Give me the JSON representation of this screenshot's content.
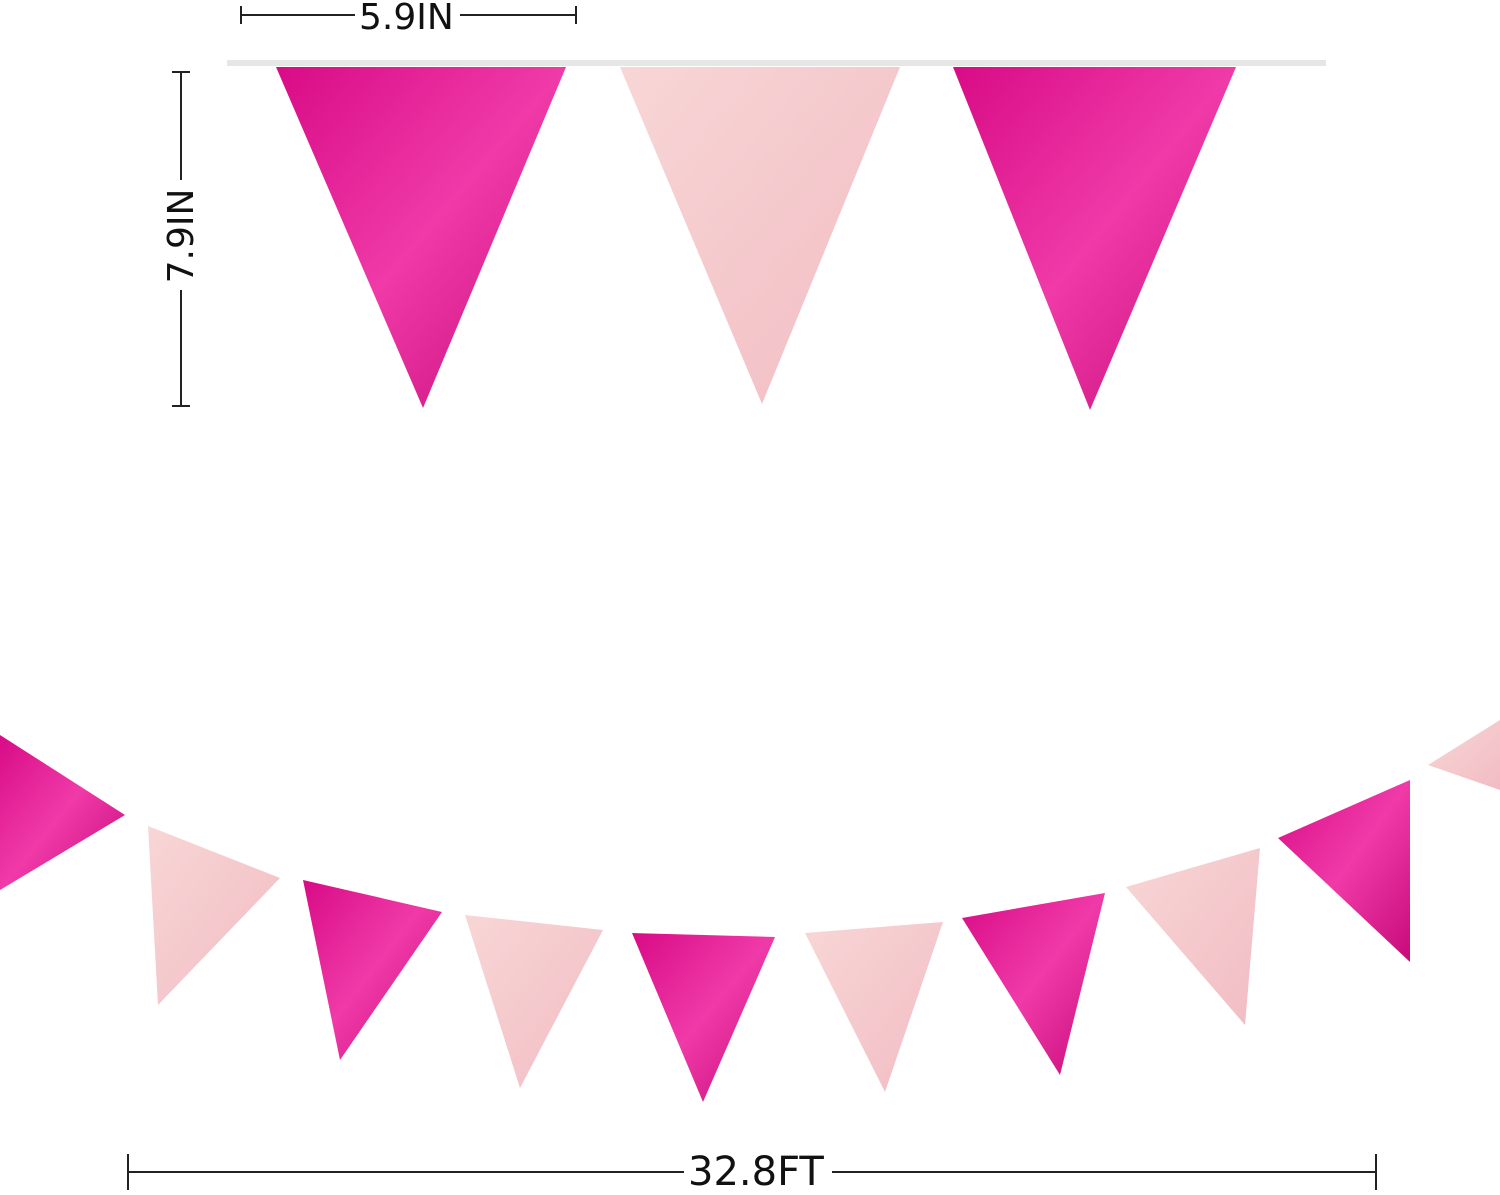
{
  "dimensions": {
    "width_label": "5.9IN",
    "height_label": "7.9IN",
    "length_label": "32.8FT"
  },
  "colors": {
    "hot_pink": "#e0178f",
    "light_pink": "#f5c9cc",
    "line": "#222222",
    "string": "#e6e6e6"
  },
  "flag_pattern": [
    "hot_pink",
    "light_pink"
  ]
}
